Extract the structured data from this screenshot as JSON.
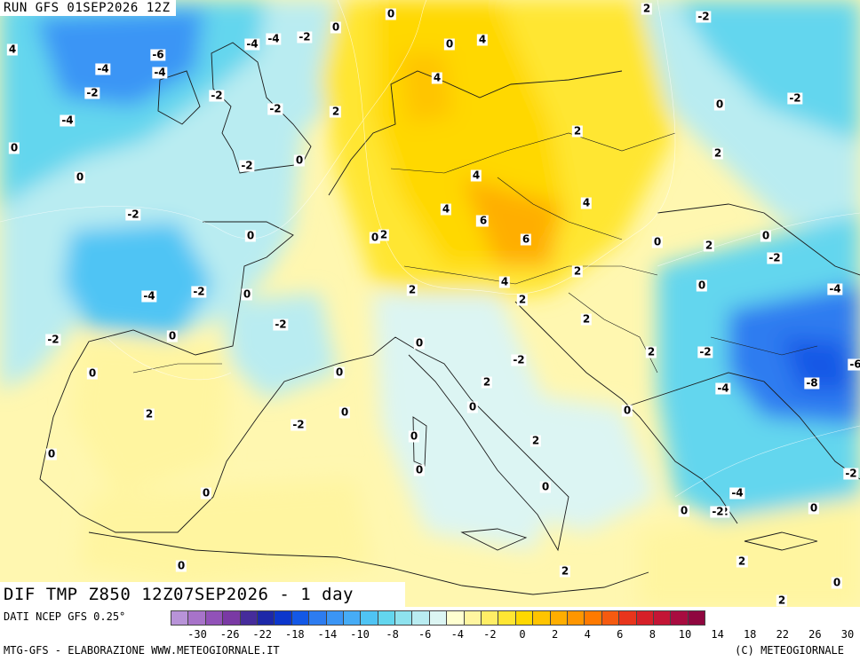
{
  "header": {
    "run_title": "RUN GFS 01SEP2026 12Z"
  },
  "field_title": "DIF TMP Z850 12Z07SEP2026 - 1 day",
  "legend": {
    "data_source": "DATI NCEP GFS 0.25°",
    "colors": [
      "#b893d8",
      "#a773c9",
      "#9152b8",
      "#7a3aa4",
      "#462c9b",
      "#1d28a8",
      "#0c37cc",
      "#1358e6",
      "#2d7cf0",
      "#3b95f5",
      "#46acf6",
      "#4fc4f4",
      "#63d6ee",
      "#8ee2ee",
      "#b9ecf1",
      "#dcf5f3",
      "#ffffd0",
      "#fff5a0",
      "#ffee66",
      "#ffe633",
      "#ffd800",
      "#ffc400",
      "#ffae00",
      "#ff9600",
      "#ff7a00",
      "#f55a10",
      "#e8351c",
      "#d62028",
      "#c31535",
      "#a80c40",
      "#8f073f"
    ],
    "ticks": [
      "-30",
      "-26",
      "-22",
      "-18",
      "-14",
      "-10",
      "-8",
      "-6",
      "-4",
      "-2",
      "0",
      "2",
      "4",
      "6",
      "8",
      "10",
      "14",
      "18",
      "22",
      "26",
      "30"
    ],
    "credit_left": "MTG-GFS - ELABORAZIONE WWW.METEOGIORNALE.IT",
    "credit_right": "(C) METEOGIORNALE"
  },
  "contour_labels": [
    "4",
    "-4",
    "-2",
    "0",
    "-6",
    "-4",
    "-4",
    "-2",
    "-4",
    "-2",
    "-2",
    "-4",
    "-2",
    "2",
    "0",
    "0",
    "-2",
    "0",
    "0",
    "-2",
    "-2",
    "-2",
    "-4",
    "0",
    "-2",
    "0",
    "-2",
    "0",
    "0",
    "-2",
    "0",
    "0",
    "2",
    "0",
    "-2",
    "0",
    "0",
    "0",
    "4",
    "4",
    "2",
    "6",
    "2",
    "2",
    "4",
    "4",
    "6",
    "6",
    "4",
    "2",
    "4",
    "2",
    "2",
    "2",
    "2",
    "0",
    "2",
    "-2",
    "0",
    "2",
    "2",
    "-2",
    "-2",
    "0",
    "0",
    "-4",
    "-2",
    "0",
    "-8",
    "-6",
    "-4",
    "-2",
    "0",
    "0",
    "2",
    "-4",
    "-2",
    "2",
    "0",
    "2",
    "0",
    "0",
    "2",
    "0",
    "0",
    "0",
    "0",
    "0",
    "-4",
    "-2",
    "0",
    "-2",
    "2",
    "2"
  ]
}
